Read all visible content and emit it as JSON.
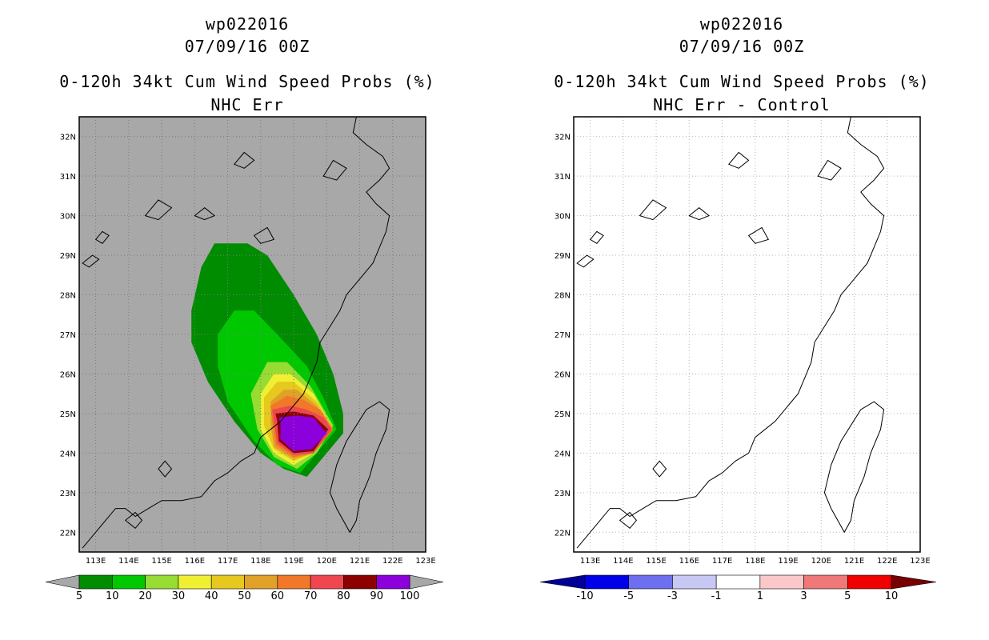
{
  "panels": [
    {
      "storm_id": "wp022016",
      "date": "07/09/16 00Z",
      "product": "0-120h 34kt Cum Wind Speed Probs (%)",
      "subtitle": "NHC Err",
      "background": "#a8a8a8",
      "colorbar": {
        "labels": [
          "5",
          "10",
          "20",
          "30",
          "40",
          "50",
          "60",
          "70",
          "80",
          "90",
          "100"
        ],
        "colors": [
          "#008c00",
          "#00c800",
          "#96dc32",
          "#f0f032",
          "#e6c81e",
          "#e1a028",
          "#f07828",
          "#f04650",
          "#8c0000",
          "#8c00dc"
        ],
        "end_color_left": "#a8a8a8",
        "end_color_right": "#a8a8a8"
      }
    },
    {
      "storm_id": "wp022016",
      "date": "07/09/16 00Z",
      "product": "0-120h 34kt Cum Wind Speed Probs (%)",
      "subtitle": "NHC Err - Control",
      "background": "#ffffff",
      "colorbar": {
        "labels": [
          "-10",
          "-5",
          "-3",
          "-1",
          "1",
          "3",
          "5",
          "10"
        ],
        "colors": [
          "#0000e6",
          "#6e6ef0",
          "#c8c8f5",
          "#ffffff",
          "#fac8c8",
          "#f07878",
          "#f00000"
        ],
        "end_color_left": "#000096",
        "end_color_right": "#780000"
      }
    }
  ],
  "axes": {
    "lon_labels": [
      "113E",
      "114E",
      "115E",
      "116E",
      "117E",
      "118E",
      "119E",
      "120E",
      "121E",
      "122E",
      "123E"
    ],
    "lat_labels": [
      "32N",
      "31N",
      "30N",
      "29N",
      "28N",
      "27N",
      "26N",
      "25N",
      "24N",
      "23N",
      "22N"
    ],
    "lon_range": [
      112.5,
      123.0
    ],
    "lat_range": [
      21.5,
      32.5
    ]
  },
  "probability_field": [
    {
      "level": 5,
      "color": "#008c00",
      "poly": [
        [
          116.2,
          28.7
        ],
        [
          116.6,
          29.3
        ],
        [
          117.6,
          29.3
        ],
        [
          118.2,
          29.0
        ],
        [
          119.0,
          28.0
        ],
        [
          119.7,
          27.0
        ],
        [
          120.2,
          26.0
        ],
        [
          120.5,
          25.0
        ],
        [
          120.5,
          24.5
        ],
        [
          120.0,
          24.0
        ],
        [
          119.4,
          23.4
        ],
        [
          118.7,
          23.6
        ],
        [
          118.0,
          24.0
        ],
        [
          117.2,
          24.8
        ],
        [
          116.4,
          25.8
        ],
        [
          115.9,
          26.8
        ],
        [
          115.9,
          27.6
        ]
      ]
    },
    {
      "level": 10,
      "color": "#00c800",
      "poly": [
        [
          116.7,
          27.0
        ],
        [
          117.2,
          27.6
        ],
        [
          117.8,
          27.6
        ],
        [
          118.5,
          27.0
        ],
        [
          119.4,
          26.2
        ],
        [
          119.9,
          25.4
        ],
        [
          120.3,
          24.6
        ],
        [
          119.8,
          24.1
        ],
        [
          119.2,
          23.5
        ],
        [
          118.5,
          23.7
        ],
        [
          117.8,
          24.3
        ],
        [
          117.0,
          25.3
        ],
        [
          116.7,
          26.2
        ]
      ]
    },
    {
      "level": 20,
      "color": "#96dc32",
      "poly": [
        [
          117.7,
          25.5
        ],
        [
          118.2,
          26.3
        ],
        [
          118.8,
          26.3
        ],
        [
          119.5,
          25.7
        ],
        [
          120.2,
          24.7
        ],
        [
          119.7,
          24.0
        ],
        [
          119.1,
          23.6
        ],
        [
          118.4,
          23.9
        ],
        [
          117.9,
          24.6
        ]
      ]
    },
    {
      "level": 30,
      "color": "#f0f032",
      "poly": [
        [
          118.0,
          25.5
        ],
        [
          118.4,
          26.0
        ],
        [
          118.9,
          26.0
        ],
        [
          119.6,
          25.5
        ],
        [
          120.2,
          24.6
        ],
        [
          119.6,
          24.0
        ],
        [
          119.0,
          23.7
        ],
        [
          118.4,
          24.0
        ],
        [
          118.0,
          24.6
        ]
      ]
    },
    {
      "level": 40,
      "color": "#e6c81e",
      "poly": [
        [
          118.1,
          25.4
        ],
        [
          118.5,
          25.8
        ],
        [
          119.0,
          25.8
        ],
        [
          119.7,
          25.3
        ],
        [
          120.2,
          24.6
        ],
        [
          119.6,
          24.0
        ],
        [
          119.0,
          23.8
        ],
        [
          118.4,
          24.1
        ],
        [
          118.1,
          24.7
        ]
      ]
    },
    {
      "level": 50,
      "color": "#e1a028",
      "poly": [
        [
          118.3,
          25.3
        ],
        [
          118.7,
          25.6
        ],
        [
          119.1,
          25.6
        ],
        [
          119.7,
          25.2
        ],
        [
          120.2,
          24.6
        ],
        [
          119.6,
          24.0
        ],
        [
          119.0,
          23.85
        ],
        [
          118.4,
          24.15
        ],
        [
          118.3,
          24.75
        ]
      ]
    },
    {
      "level": 60,
      "color": "#f07828",
      "poly": [
        [
          118.3,
          25.2
        ],
        [
          118.8,
          25.45
        ],
        [
          119.3,
          25.35
        ],
        [
          119.8,
          25.1
        ],
        [
          120.2,
          24.6
        ],
        [
          119.6,
          24.0
        ],
        [
          119.0,
          23.9
        ],
        [
          118.45,
          24.2
        ],
        [
          118.35,
          24.8
        ]
      ]
    },
    {
      "level": 70,
      "color": "#f04650",
      "poly": [
        [
          118.35,
          25.1
        ],
        [
          118.9,
          25.2
        ],
        [
          119.4,
          25.1
        ],
        [
          119.9,
          24.9
        ],
        [
          120.15,
          24.6
        ],
        [
          119.6,
          24.0
        ],
        [
          119.0,
          23.95
        ],
        [
          118.5,
          24.25
        ],
        [
          118.4,
          24.8
        ]
      ]
    },
    {
      "level": 80,
      "color": "#8c0000",
      "poly": [
        [
          118.45,
          25.0
        ],
        [
          119.0,
          25.05
        ],
        [
          119.6,
          24.95
        ],
        [
          120.05,
          24.6
        ],
        [
          119.6,
          24.05
        ],
        [
          119.0,
          24.0
        ],
        [
          118.55,
          24.3
        ],
        [
          118.5,
          24.8
        ]
      ]
    },
    {
      "level": 100,
      "color": "#8c00dc",
      "poly": [
        [
          118.55,
          24.9
        ],
        [
          119.1,
          24.95
        ],
        [
          119.6,
          24.9
        ],
        [
          120.0,
          24.5
        ],
        [
          119.55,
          24.1
        ],
        [
          119.0,
          24.05
        ],
        [
          118.6,
          24.35
        ],
        [
          118.6,
          24.75
        ]
      ]
    }
  ]
}
